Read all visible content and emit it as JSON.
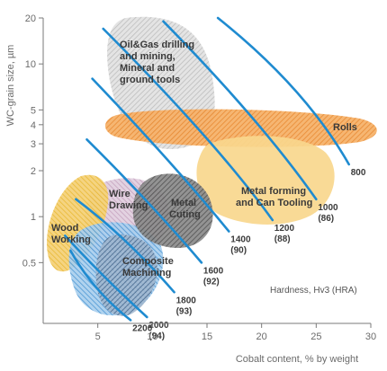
{
  "chart_data": {
    "type": "area",
    "xlabel": "Cobalt content, % by weight",
    "ylabel": "WC-grain size, µm",
    "xlim": [
      0,
      30
    ],
    "ylim": [
      0.2,
      20
    ],
    "y_scale": "log",
    "x_ticks": [
      "5",
      "10",
      "15",
      "20",
      "25",
      "30"
    ],
    "y_ticks": [
      "0.5",
      "1",
      "2",
      "3",
      "4",
      "5",
      "10",
      "20"
    ],
    "grid": false,
    "note": "Hardness, Hv3 (HRA)",
    "colors": {
      "hardness_line": "#1f8bd0",
      "oil_gas": "#bdbdbd",
      "rolls": "#e9892f",
      "metal_forming": "#f5c96b",
      "metal_cutting": "#555555",
      "wire_drawing": "#c9a8c4",
      "wood_working": "#efc13e",
      "composite_machining": "#3f8fd0",
      "axis": "#7a7a7a"
    },
    "hardness_lines": [
      {
        "label": "2200",
        "label2": "",
        "points": [
          [
            2.5,
            0.6
          ],
          [
            4.5,
            0.33
          ],
          [
            8,
            0.21
          ]
        ]
      },
      {
        "label": "2000",
        "label2": "(94)",
        "points": [
          [
            2,
            0.75
          ],
          [
            5.5,
            0.4
          ],
          [
            9.5,
            0.22
          ]
        ]
      },
      {
        "label": "1800",
        "label2": "(93)",
        "points": [
          [
            3,
            1.3
          ],
          [
            7.5,
            0.75
          ],
          [
            12,
            0.32
          ]
        ]
      },
      {
        "label": "1600",
        "label2": "(92)",
        "points": [
          [
            4,
            3.2
          ],
          [
            10,
            1.2
          ],
          [
            14.5,
            0.5
          ]
        ]
      },
      {
        "label": "1400",
        "label2": "(90)",
        "points": [
          [
            4.5,
            8
          ],
          [
            12,
            2.2
          ],
          [
            17,
            0.8
          ]
        ]
      },
      {
        "label": "1200",
        "label2": "(88)",
        "points": [
          [
            5.5,
            17
          ],
          [
            16,
            3
          ],
          [
            21,
            0.95
          ]
        ]
      },
      {
        "label": "1000",
        "label2": "(86)",
        "points": [
          [
            11,
            19
          ],
          [
            20,
            4.2
          ],
          [
            25,
            1.3
          ]
        ]
      },
      {
        "label": "800",
        "label2": "",
        "points": [
          [
            16,
            20
          ],
          [
            24,
            7
          ],
          [
            28,
            2.2
          ]
        ]
      }
    ],
    "regions": [
      {
        "key": "oil_gas",
        "label_lines": [
          "Oil&Gas drilling",
          "and mining,",
          "Mineral and",
          "ground tools"
        ]
      },
      {
        "key": "rolls",
        "label_lines": [
          "Rolls"
        ]
      },
      {
        "key": "metal_forming",
        "label_lines": [
          "Metal forming",
          "and Can Tooling"
        ]
      },
      {
        "key": "metal_cutting",
        "label_lines": [
          "Metal",
          "Cuting"
        ]
      },
      {
        "key": "wire_drawing",
        "label_lines": [
          "Wire",
          "Drawing"
        ]
      },
      {
        "key": "wood_working",
        "label_lines": [
          "Wood",
          "Working"
        ]
      },
      {
        "key": "composite_machining",
        "label_lines": [
          "Composite",
          "Machining"
        ]
      }
    ]
  }
}
